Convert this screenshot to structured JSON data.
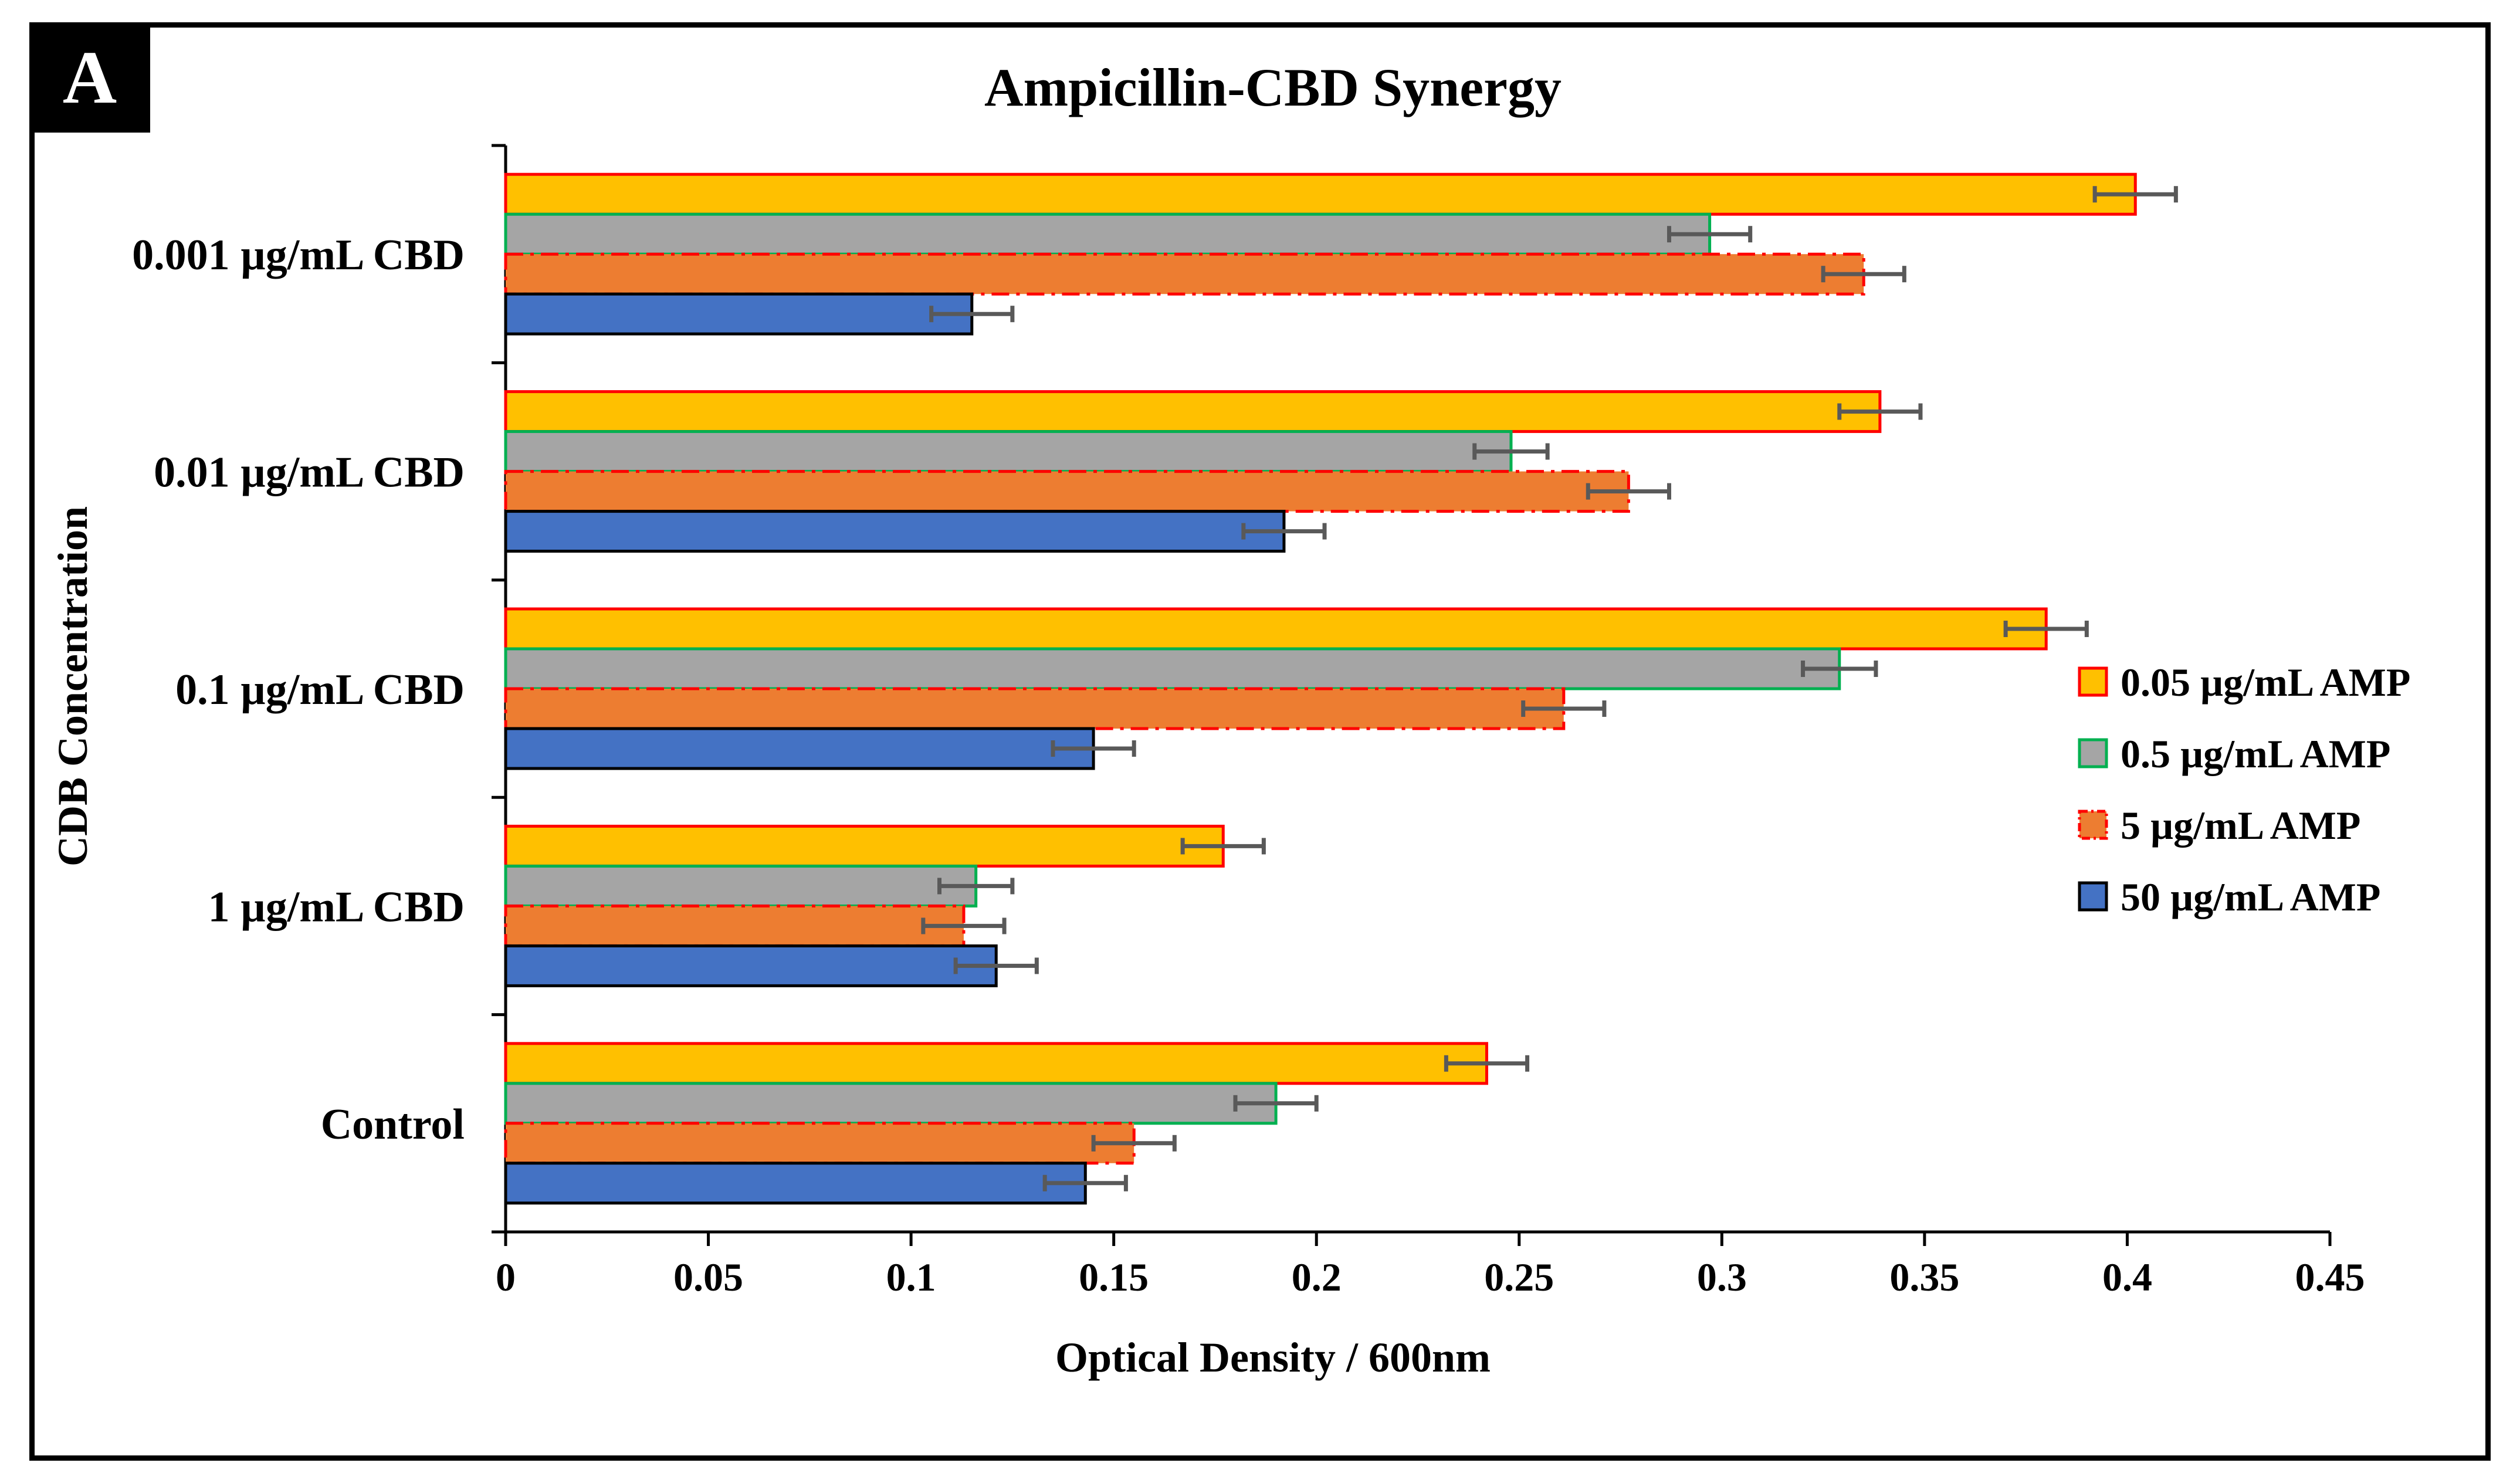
{
  "panel_label": "A",
  "chart_data": {
    "type": "bar",
    "orientation": "horizontal",
    "title": "Ampicillin-CBD Synergy",
    "xlabel": "Optical Density / 600nm",
    "ylabel": "CDB Concentration",
    "xlim": [
      0,
      0.45
    ],
    "xticks": [
      0,
      0.05,
      0.1,
      0.15,
      0.2,
      0.25,
      0.3,
      0.35,
      0.4,
      0.45
    ],
    "xtick_labels": [
      "0",
      "0.05",
      "0.1",
      "0.15",
      "0.2",
      "0.25",
      "0.3",
      "0.35",
      "0.4",
      "0.45"
    ],
    "categories": [
      "Control",
      "1 µg/mL CBD",
      "0.1 µg/mL CBD",
      "0.01 µg/mL CBD",
      "0.001 µg/mL CBD"
    ],
    "series": [
      {
        "name": "0.05 µg/mL AMP",
        "fill": "#FFC000",
        "stroke": "#FF0000",
        "dash": "",
        "values": [
          0.242,
          0.177,
          0.38,
          0.339,
          0.402
        ],
        "errors": [
          0.01,
          0.01,
          0.01,
          0.01,
          0.01
        ]
      },
      {
        "name": "0.5 µg/mL AMP",
        "fill": "#A5A5A5",
        "stroke": "#00B050",
        "dash": "",
        "values": [
          0.19,
          0.116,
          0.329,
          0.248,
          0.297
        ],
        "errors": [
          0.01,
          0.009,
          0.009,
          0.009,
          0.01
        ]
      },
      {
        "name": "5 µg/mL AMP",
        "fill": "#ED7D31",
        "stroke": "#FF0000",
        "dash": "dash-dot",
        "values": [
          0.155,
          0.113,
          0.261,
          0.277,
          0.335
        ],
        "errors": [
          0.01,
          0.01,
          0.01,
          0.01,
          0.01
        ]
      },
      {
        "name": "50 µg/mL AMP",
        "fill": "#4472C4",
        "stroke": "#000000",
        "dash": "",
        "values": [
          0.143,
          0.121,
          0.145,
          0.192,
          0.115
        ],
        "errors": [
          0.01,
          0.01,
          0.01,
          0.01,
          0.01
        ]
      }
    ],
    "legend_position": "right",
    "grid": false,
    "error_bars": true
  }
}
